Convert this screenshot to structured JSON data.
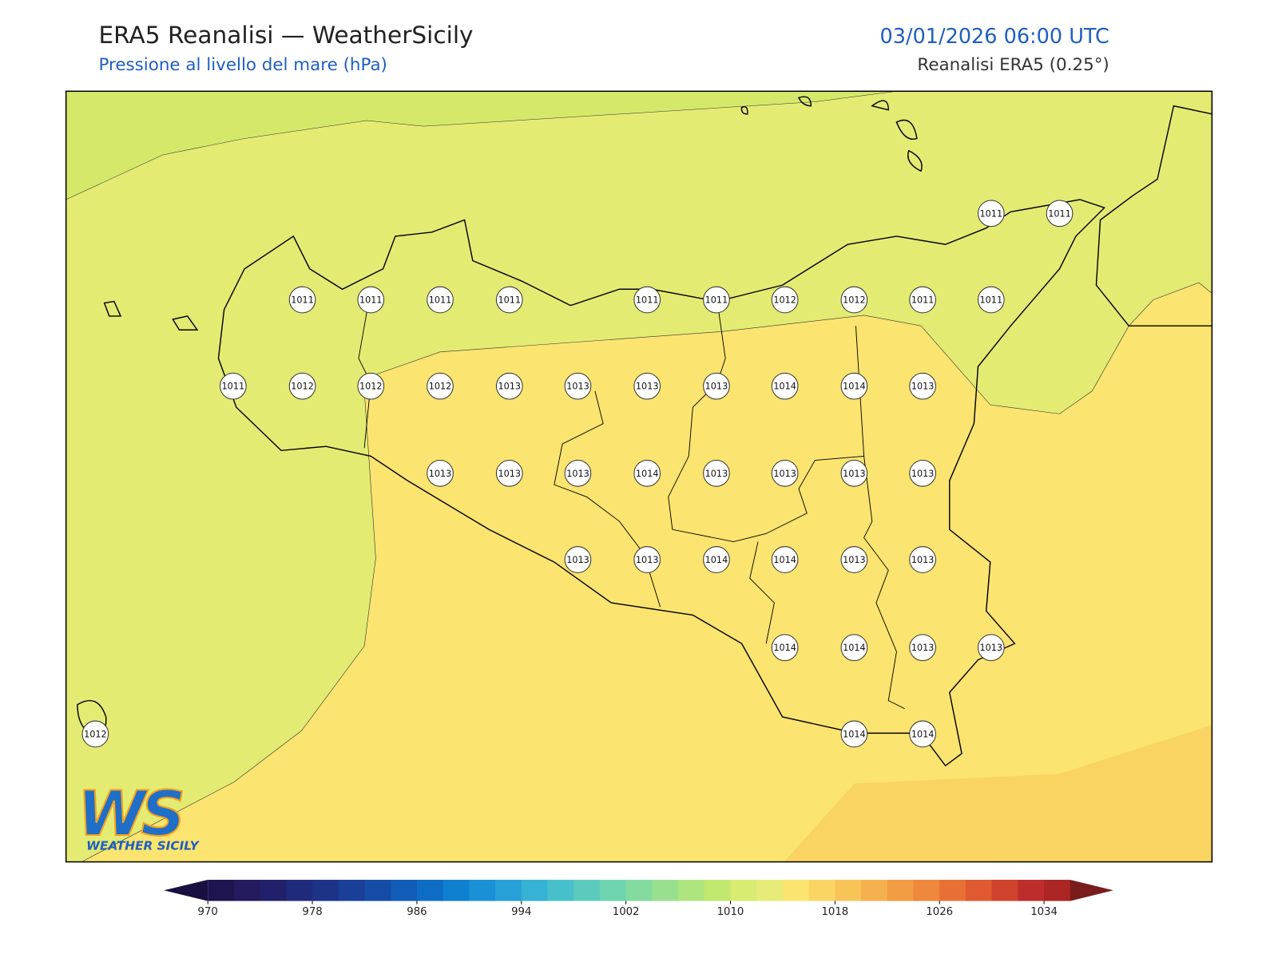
{
  "header": {
    "title": "ERA5 Reanalisi — WeatherSicily",
    "subtitle": "Pressione al livello del mare (hPa)",
    "datetime": "03/01/2026 06:00 UTC",
    "source": "Reanalisi ERA5 (0.25°)"
  },
  "logo": {
    "mark": "WS",
    "name": "WEATHER SICILY"
  },
  "stations": [
    1011,
    1011,
    1011,
    1011,
    1011,
    1011,
    1011,
    1011,
    1012,
    1012,
    1011,
    1011,
    1011,
    1012,
    1012,
    1012,
    1013,
    1013,
    1013,
    1013,
    1014,
    1014,
    1013,
    1013,
    1013,
    1013,
    1014,
    1013,
    1013,
    1013,
    1013,
    1013,
    1013,
    1014,
    1014,
    1013,
    1013,
    1014,
    1014,
    1013,
    1013,
    1012,
    1014,
    1014
  ],
  "colorbar": {
    "lim": [
      970,
      1036
    ],
    "ticks": [
      970,
      978,
      986,
      994,
      1002,
      1010,
      1018,
      1026,
      1034
    ],
    "colors": [
      "#1e1450",
      "#241a5e",
      "#21216b",
      "#1f2a7a",
      "#1c3388",
      "#193f98",
      "#154ca8",
      "#115cb8",
      "#0e6cc5",
      "#0f7fd0",
      "#1a90d6",
      "#27a0d8",
      "#35b2d4",
      "#48c0cc",
      "#5ccbbe",
      "#6fd5b0",
      "#84dba0",
      "#98e08e",
      "#aee57e",
      "#c2e870",
      "#d8ec72",
      "#e7ec78",
      "#fbe46f",
      "#fbd563",
      "#f8c458",
      "#f5b04e",
      "#f29c44",
      "#ef873c",
      "#e87035",
      "#df5a30",
      "#d0432c",
      "#bd2d2b",
      "#ad2525"
    ],
    "under_color": "#1a0f40",
    "over_color": "#7a1c1c"
  }
}
